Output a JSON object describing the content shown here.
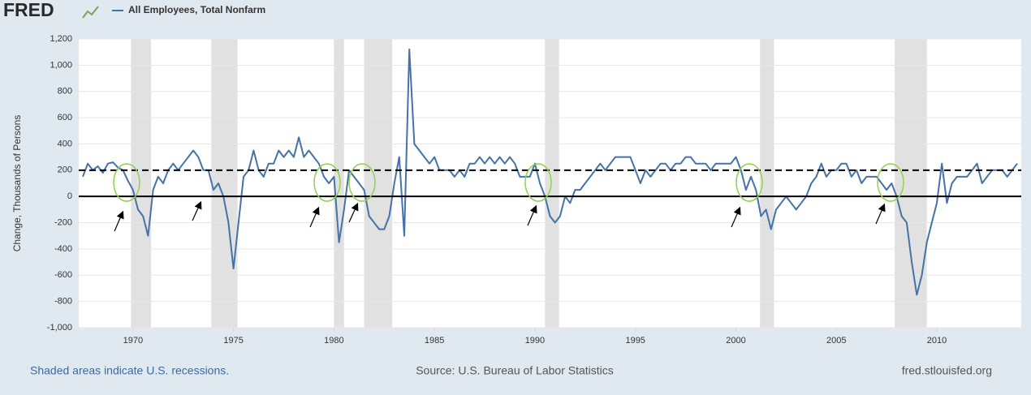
{
  "brand": "FRED",
  "chart_data": {
    "type": "line",
    "ylabel": "Change, Thousands of Persons",
    "series": [
      {
        "name": "All Employees, Total Nonfarm",
        "color": "#4572a7",
        "values": [
          150,
          250,
          200,
          230,
          180,
          250,
          260,
          220,
          200,
          120,
          50,
          -100,
          -150,
          -300,
          50,
          150,
          100,
          200,
          250,
          200,
          250,
          300,
          350,
          300,
          200,
          200,
          50,
          100,
          0,
          -200,
          -550,
          -200,
          150,
          200,
          350,
          200,
          150,
          250,
          250,
          350,
          300,
          350,
          300,
          450,
          300,
          350,
          300,
          250,
          150,
          100,
          150,
          -350,
          -100,
          200,
          150,
          100,
          50,
          -150,
          -200,
          -250,
          -250,
          -150,
          100,
          300,
          -300,
          1120,
          400,
          350,
          300,
          250,
          300,
          200,
          200,
          200,
          150,
          200,
          150,
          250,
          250,
          300,
          250,
          300,
          250,
          300,
          250,
          300,
          250,
          150,
          150,
          150,
          250,
          100,
          0,
          -150,
          -200,
          -150,
          0,
          -50,
          50,
          50,
          100,
          150,
          200,
          250,
          200,
          250,
          300,
          300,
          300,
          300,
          200,
          100,
          200,
          150,
          200,
          250,
          250,
          200,
          250,
          250,
          300,
          300,
          250,
          250,
          250,
          200,
          250,
          250,
          250,
          250,
          300,
          200,
          50,
          150,
          50,
          -150,
          -100,
          -250,
          -100,
          -50,
          0,
          -50,
          -100,
          -50,
          0,
          100,
          150,
          250,
          150,
          200,
          200,
          250,
          250,
          150,
          200,
          100,
          150,
          150,
          150,
          100,
          50,
          100,
          0,
          -150,
          -200,
          -500,
          -750,
          -600,
          -350,
          -200,
          -50,
          250,
          -50,
          100,
          150,
          150,
          150,
          200,
          250,
          100,
          150,
          200,
          200,
          200,
          150,
          200,
          250
        ]
      }
    ],
    "x": [
      1967.5,
      1967.75,
      1968,
      1968.25,
      1968.5,
      1968.75,
      1969,
      1969.25,
      1969.5,
      1969.75,
      1970,
      1970.25,
      1970.5,
      1970.75,
      1971,
      1971.25,
      1971.5,
      1971.75,
      1972,
      1972.25,
      1972.5,
      1972.75,
      1973,
      1973.25,
      1973.5,
      1973.75,
      1974,
      1974.25,
      1974.5,
      1974.75,
      1975,
      1975.25,
      1975.5,
      1975.75,
      1976,
      1976.25,
      1976.5,
      1976.75,
      1977,
      1977.25,
      1977.5,
      1977.75,
      1978,
      1978.25,
      1978.5,
      1978.75,
      1979,
      1979.25,
      1979.5,
      1979.75,
      1980,
      1980.25,
      1980.5,
      1980.75,
      1981,
      1981.25,
      1981.5,
      1981.75,
      1982,
      1982.25,
      1982.5,
      1982.75,
      1983,
      1983.25,
      1983.5,
      1983.75,
      1984,
      1984.25,
      1984.5,
      1984.75,
      1985,
      1985.25,
      1985.5,
      1985.75,
      1986,
      1986.25,
      1986.5,
      1986.75,
      1987,
      1987.25,
      1987.5,
      1987.75,
      1988,
      1988.25,
      1988.5,
      1988.75,
      1989,
      1989.25,
      1989.5,
      1989.75,
      1990,
      1990.25,
      1990.5,
      1990.75,
      1991,
      1991.25,
      1991.5,
      1991.75,
      1992,
      1992.25,
      1992.5,
      1992.75,
      1993,
      1993.25,
      1993.5,
      1993.75,
      1994,
      1994.25,
      1994.5,
      1994.75,
      1995,
      1995.25,
      1995.5,
      1995.75,
      1996,
      1996.25,
      1996.5,
      1996.75,
      1997,
      1997.25,
      1997.5,
      1997.75,
      1998,
      1998.25,
      1998.5,
      1998.75,
      1999,
      1999.25,
      1999.5,
      1999.75,
      2000,
      2000.25,
      2000.5,
      2000.75,
      2001,
      2001.25,
      2001.5,
      2001.75,
      2002,
      2002.25,
      2002.5,
      2002.75,
      2003,
      2003.25,
      2003.5,
      2003.75,
      2004,
      2004.25,
      2004.5,
      2004.75,
      2005,
      2005.25,
      2005.5,
      2005.75,
      2006,
      2006.25,
      2006.5,
      2006.75,
      2007,
      2007.25,
      2007.5,
      2007.75,
      2008,
      2008.25,
      2008.5,
      2008.75,
      2009,
      2009.25,
      2009.5,
      2009.75,
      2010,
      2010.25,
      2010.5,
      2010.75,
      2011,
      2011.25,
      2011.5,
      2011.75,
      2012,
      2012.25,
      2012.5,
      2012.75,
      2013,
      2013.25,
      2013.5,
      2013.75,
      2014
    ],
    "xlim": [
      1967.3,
      2014.2
    ],
    "xticks": [
      1970,
      1975,
      1980,
      1985,
      1990,
      1995,
      2000,
      2005,
      2010
    ],
    "ylim": [
      -1000,
      1200
    ],
    "yticks": [
      {
        "value": -1000,
        "label": "-1,000"
      },
      -800,
      -600,
      -400,
      -200,
      0,
      200,
      400,
      600,
      800,
      {
        "value": 1000,
        "label": "1,000"
      },
      {
        "value": 1200,
        "label": "1,200"
      }
    ],
    "grid": true,
    "recessions": [
      [
        1969.9,
        1970.9
      ],
      [
        1973.9,
        1975.2
      ],
      [
        1980.0,
        1980.5
      ],
      [
        1981.5,
        1982.9
      ],
      [
        1990.5,
        1991.2
      ],
      [
        2001.2,
        2001.9
      ],
      [
        2007.9,
        2009.5
      ]
    ],
    "reference_lines": [
      {
        "value": 0,
        "style": "solid"
      },
      {
        "value": 200,
        "style": "dashed"
      }
    ]
  },
  "footer": {
    "note": "Shaded areas indicate U.S. recessions.",
    "source": "Source: U.S. Bureau of Labor Statistics",
    "site": "fred.stlouisfed.org"
  }
}
